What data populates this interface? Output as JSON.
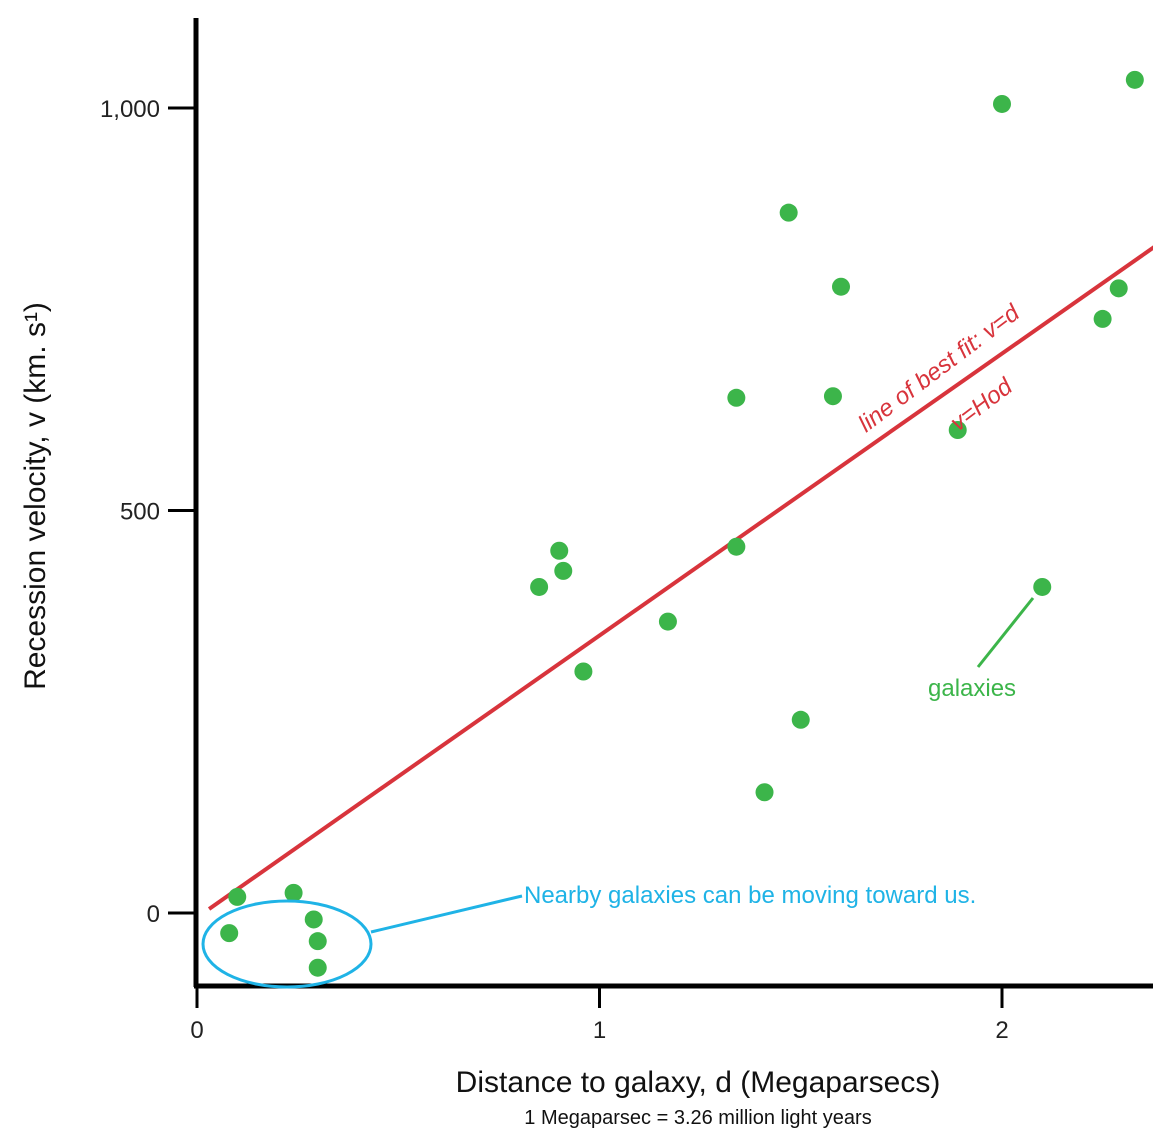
{
  "chart_data": {
    "type": "scatter",
    "xlabel": "Distance to galaxy, d (Megaparsecs)",
    "x_note": "1 Megaparsec = 3.26 million light years",
    "ylabel": "Recession velocity, v (km. s¹)",
    "xlim": [
      0,
      2.4
    ],
    "ylim": [
      -90,
      1115
    ],
    "x_ticks": [
      {
        "value": 0,
        "label": "0"
      },
      {
        "value": 1,
        "label": "1"
      },
      {
        "value": 2,
        "label": "2"
      }
    ],
    "y_ticks": [
      {
        "value": 0,
        "label": "0"
      },
      {
        "value": 500,
        "label": "500"
      },
      {
        "value": 1000,
        "label": "1,000"
      }
    ],
    "series": [
      {
        "color": "#3cb54a",
        "points": [
          [
            0.1,
            20
          ],
          [
            0.08,
            -25
          ],
          [
            0.24,
            25
          ],
          [
            0.29,
            -8
          ],
          [
            0.3,
            -35
          ],
          [
            0.3,
            -68
          ],
          [
            0.85,
            405
          ],
          [
            0.9,
            450
          ],
          [
            0.91,
            425
          ],
          [
            0.96,
            300
          ],
          [
            1.17,
            362
          ],
          [
            1.34,
            640
          ],
          [
            1.34,
            455
          ],
          [
            1.41,
            150
          ],
          [
            1.47,
            870
          ],
          [
            1.5,
            240
          ],
          [
            1.58,
            642
          ],
          [
            1.6,
            778
          ],
          [
            1.89,
            600
          ],
          [
            2.0,
            1005
          ],
          [
            2.1,
            405
          ],
          [
            2.25,
            738
          ],
          [
            2.29,
            776
          ],
          [
            2.33,
            1035
          ]
        ]
      }
    ],
    "fit_line": {
      "x": [
        0.03,
        2.4
      ],
      "y": [
        5,
        835
      ],
      "color": "#d8343c"
    },
    "annotations": {
      "fit_label_1": "line of best fit: v=d",
      "fit_label_2": "v=Hod",
      "galaxies_label": "galaxies",
      "nearby_label": "Nearby galaxies can be moving toward us."
    },
    "colors": {
      "axis": "#000000",
      "points": "#3cb54a",
      "fit": "#d8343c",
      "nearby": "#1fb3e6"
    }
  }
}
